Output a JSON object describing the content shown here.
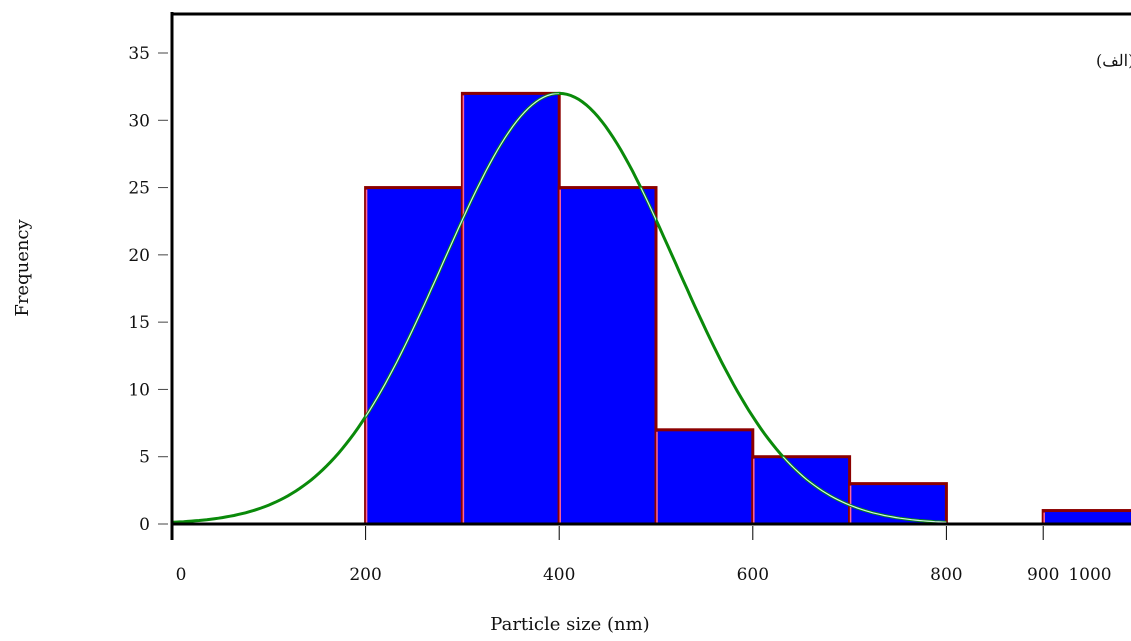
{
  "chart_data": {
    "type": "bar",
    "panel_label": "(الف)",
    "xlabel": "Particle size (nm)",
    "ylabel": "Frequency",
    "xlim": [
      0,
      1000
    ],
    "ylim": [
      0,
      37
    ],
    "x_ticks": [
      {
        "value": 0,
        "label": "0"
      },
      {
        "value": 200,
        "label": "200"
      },
      {
        "value": 400,
        "label": "400"
      },
      {
        "value": 600,
        "label": "600"
      },
      {
        "value": 800,
        "label": "800"
      },
      {
        "value": 900,
        "label": "900"
      },
      {
        "value": 1000,
        "label": "1000"
      }
    ],
    "y_ticks": [
      {
        "value": 0,
        "label": "0"
      },
      {
        "value": 5,
        "label": "5"
      },
      {
        "value": 10,
        "label": "10"
      },
      {
        "value": 15,
        "label": "15"
      },
      {
        "value": 20,
        "label": "20"
      },
      {
        "value": 25,
        "label": "25"
      },
      {
        "value": 30,
        "label": "30"
      },
      {
        "value": 35,
        "label": "35"
      }
    ],
    "bins": [
      {
        "start": 200,
        "end": 300,
        "value": 25
      },
      {
        "start": 300,
        "end": 400,
        "value": 32
      },
      {
        "start": 400,
        "end": 500,
        "value": 25
      },
      {
        "start": 500,
        "end": 600,
        "value": 7
      },
      {
        "start": 600,
        "end": 700,
        "value": 5
      },
      {
        "start": 700,
        "end": 800,
        "value": 3
      },
      {
        "start": 900,
        "end": 1000,
        "value": 1
      }
    ],
    "fit_curve": {
      "type": "normal",
      "mean": 400,
      "sd": 120,
      "peak": 32,
      "x_range": [
        0,
        800
      ]
    },
    "colors": {
      "bar_fill": "#0000ff",
      "bar_edge": "#8b0000",
      "bar_divider": "#ff6699",
      "curve_outer": "#0a8a0a",
      "curve_inner": "#cfeee8",
      "axis": "#000000"
    }
  }
}
